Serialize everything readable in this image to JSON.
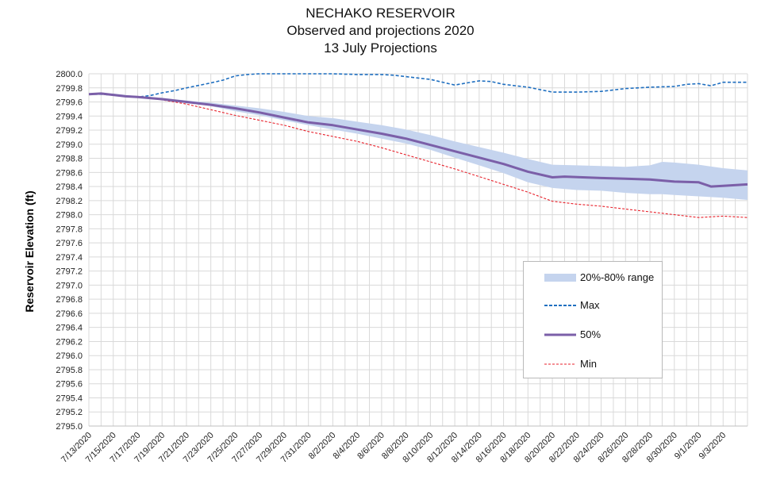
{
  "titles": {
    "line1": "NECHAKO RESERVOIR",
    "line2": "Observed and projections 2020",
    "line3": "13 July Projections"
  },
  "chart_data": {
    "type": "line",
    "ylabel": "Reservoir Elevation (ft)",
    "xlabel": "",
    "ylim": [
      2795.0,
      2800.0
    ],
    "y_tick_step": 0.2,
    "grid": true,
    "legend_position": "lower-right",
    "x_tick_labels": [
      "7/13/2020",
      "7/15/2020",
      "7/17/2020",
      "7/19/2020",
      "7/21/2020",
      "7/23/2020",
      "7/25/2020",
      "7/27/2020",
      "7/29/2020",
      "7/31/2020",
      "8/2/2020",
      "8/4/2020",
      "8/6/2020",
      "8/8/2020",
      "8/10/2020",
      "8/12/2020",
      "8/14/2020",
      "8/16/2020",
      "8/18/2020",
      "8/20/2020",
      "8/22/2020",
      "8/24/2020",
      "8/26/2020",
      "8/28/2020",
      "8/30/2020",
      "9/1/2020",
      "9/3/2020"
    ],
    "x_start": "7/13/2020",
    "x_end": "9/5/2020",
    "range_band": {
      "name": "20%-80% range",
      "color": "#c5d4ee",
      "points": [
        {
          "date": "7/13/2020",
          "low": 2799.71,
          "high": 2799.71
        },
        {
          "date": "7/15/2020",
          "low": 2799.71,
          "high": 2799.72
        },
        {
          "date": "7/17/2020",
          "low": 2799.66,
          "high": 2799.68
        },
        {
          "date": "7/19/2020",
          "low": 2799.64,
          "high": 2799.66
        },
        {
          "date": "7/21/2020",
          "low": 2799.59,
          "high": 2799.62
        },
        {
          "date": "7/23/2020",
          "low": 2799.54,
          "high": 2799.59
        },
        {
          "date": "7/25/2020",
          "low": 2799.47,
          "high": 2799.55
        },
        {
          "date": "7/27/2020",
          "low": 2799.41,
          "high": 2799.51
        },
        {
          "date": "7/29/2020",
          "low": 2799.34,
          "high": 2799.46
        },
        {
          "date": "7/31/2020",
          "low": 2799.27,
          "high": 2799.4
        },
        {
          "date": "8/2/2020",
          "low": 2799.21,
          "high": 2799.37
        },
        {
          "date": "8/4/2020",
          "low": 2799.15,
          "high": 2799.32
        },
        {
          "date": "8/6/2020",
          "low": 2799.08,
          "high": 2799.27
        },
        {
          "date": "8/8/2020",
          "low": 2799.01,
          "high": 2799.21
        },
        {
          "date": "8/10/2020",
          "low": 2798.92,
          "high": 2799.13
        },
        {
          "date": "8/12/2020",
          "low": 2798.81,
          "high": 2799.04
        },
        {
          "date": "8/14/2020",
          "low": 2798.7,
          "high": 2798.96
        },
        {
          "date": "8/16/2020",
          "low": 2798.59,
          "high": 2798.88
        },
        {
          "date": "8/18/2020",
          "low": 2798.46,
          "high": 2798.79
        },
        {
          "date": "8/20/2020",
          "low": 2798.38,
          "high": 2798.71
        },
        {
          "date": "8/22/2020",
          "low": 2798.35,
          "high": 2798.7
        },
        {
          "date": "8/24/2020",
          "low": 2798.34,
          "high": 2798.69
        },
        {
          "date": "8/26/2020",
          "low": 2798.31,
          "high": 2798.68
        },
        {
          "date": "8/28/2020",
          "low": 2798.29,
          "high": 2798.7
        },
        {
          "date": "8/29/2020",
          "low": 2798.29,
          "high": 2798.75
        },
        {
          "date": "8/30/2020",
          "low": 2798.28,
          "high": 2798.74
        },
        {
          "date": "9/1/2020",
          "low": 2798.26,
          "high": 2798.71
        },
        {
          "date": "9/3/2020",
          "low": 2798.24,
          "high": 2798.66
        },
        {
          "date": "9/5/2020",
          "low": 2798.21,
          "high": 2798.63
        }
      ]
    },
    "series": [
      {
        "name": "Max",
        "color": "#1f6fc0",
        "dash": "dashed",
        "points": [
          {
            "date": "7/13/2020",
            "value": 2799.71
          },
          {
            "date": "7/14/2020",
            "value": 2799.71
          },
          {
            "date": "7/17/2020",
            "value": 2799.67
          },
          {
            "date": "7/18/2020",
            "value": 2799.69
          },
          {
            "date": "7/19/2020",
            "value": 2799.73
          },
          {
            "date": "7/20/2020",
            "value": 2799.76
          },
          {
            "date": "7/21/2020",
            "value": 2799.8
          },
          {
            "date": "7/23/2020",
            "value": 2799.87
          },
          {
            "date": "7/24/2020",
            "value": 2799.91
          },
          {
            "date": "7/25/2020",
            "value": 2799.97
          },
          {
            "date": "7/26/2020",
            "value": 2799.99
          },
          {
            "date": "7/27/2020",
            "value": 2800.0
          },
          {
            "date": "7/31/2020",
            "value": 2800.0
          },
          {
            "date": "8/2/2020",
            "value": 2800.0
          },
          {
            "date": "8/4/2020",
            "value": 2799.99
          },
          {
            "date": "8/6/2020",
            "value": 2799.99
          },
          {
            "date": "8/7/2020",
            "value": 2799.98
          },
          {
            "date": "8/8/2020",
            "value": 2799.96
          },
          {
            "date": "8/10/2020",
            "value": 2799.92
          },
          {
            "date": "8/12/2020",
            "value": 2799.84
          },
          {
            "date": "8/13/2020",
            "value": 2799.87
          },
          {
            "date": "8/14/2020",
            "value": 2799.9
          },
          {
            "date": "8/15/2020",
            "value": 2799.89
          },
          {
            "date": "8/16/2020",
            "value": 2799.85
          },
          {
            "date": "8/18/2020",
            "value": 2799.81
          },
          {
            "date": "8/20/2020",
            "value": 2799.74
          },
          {
            "date": "8/22/2020",
            "value": 2799.74
          },
          {
            "date": "8/24/2020",
            "value": 2799.75
          },
          {
            "date": "8/26/2020",
            "value": 2799.79
          },
          {
            "date": "8/28/2020",
            "value": 2799.81
          },
          {
            "date": "8/30/2020",
            "value": 2799.82
          },
          {
            "date": "8/31/2020",
            "value": 2799.85
          },
          {
            "date": "9/1/2020",
            "value": 2799.86
          },
          {
            "date": "9/2/2020",
            "value": 2799.83
          },
          {
            "date": "9/3/2020",
            "value": 2799.88
          },
          {
            "date": "9/5/2020",
            "value": 2799.88
          }
        ]
      },
      {
        "name": "50%",
        "color": "#7b5fa8",
        "dash": "solid",
        "points": [
          {
            "date": "7/13/2020",
            "value": 2799.71
          },
          {
            "date": "7/14/2020",
            "value": 2799.72
          },
          {
            "date": "7/15/2020",
            "value": 2799.7
          },
          {
            "date": "7/16/2020",
            "value": 2799.68
          },
          {
            "date": "7/17/2020",
            "value": 2799.67
          },
          {
            "date": "7/19/2020",
            "value": 2799.64
          },
          {
            "date": "7/21/2020",
            "value": 2799.6
          },
          {
            "date": "7/23/2020",
            "value": 2799.56
          },
          {
            "date": "7/25/2020",
            "value": 2799.51
          },
          {
            "date": "7/27/2020",
            "value": 2799.45
          },
          {
            "date": "7/29/2020",
            "value": 2799.38
          },
          {
            "date": "7/31/2020",
            "value": 2799.31
          },
          {
            "date": "8/2/2020",
            "value": 2799.27
          },
          {
            "date": "8/4/2020",
            "value": 2799.21
          },
          {
            "date": "8/6/2020",
            "value": 2799.15
          },
          {
            "date": "8/8/2020",
            "value": 2799.08
          },
          {
            "date": "8/10/2020",
            "value": 2798.99
          },
          {
            "date": "8/12/2020",
            "value": 2798.9
          },
          {
            "date": "8/14/2020",
            "value": 2798.81
          },
          {
            "date": "8/16/2020",
            "value": 2798.72
          },
          {
            "date": "8/18/2020",
            "value": 2798.61
          },
          {
            "date": "8/20/2020",
            "value": 2798.53
          },
          {
            "date": "8/21/2020",
            "value": 2798.54
          },
          {
            "date": "8/24/2020",
            "value": 2798.52
          },
          {
            "date": "8/26/2020",
            "value": 2798.51
          },
          {
            "date": "8/28/2020",
            "value": 2798.5
          },
          {
            "date": "8/30/2020",
            "value": 2798.47
          },
          {
            "date": "9/1/2020",
            "value": 2798.46
          },
          {
            "date": "9/2/2020",
            "value": 2798.4
          },
          {
            "date": "9/3/2020",
            "value": 2798.41
          },
          {
            "date": "9/5/2020",
            "value": 2798.43
          }
        ]
      },
      {
        "name": "Min",
        "color": "#e8212b",
        "dash": "dashed",
        "points": [
          {
            "date": "7/13/2020",
            "value": 2799.71
          },
          {
            "date": "7/14/2020",
            "value": 2799.71
          },
          {
            "date": "7/16/2020",
            "value": 2799.68
          },
          {
            "date": "7/18/2020",
            "value": 2799.66
          },
          {
            "date": "7/19/2020",
            "value": 2799.63
          },
          {
            "date": "7/21/2020",
            "value": 2799.57
          },
          {
            "date": "7/23/2020",
            "value": 2799.49
          },
          {
            "date": "7/25/2020",
            "value": 2799.41
          },
          {
            "date": "7/27/2020",
            "value": 2799.34
          },
          {
            "date": "7/29/2020",
            "value": 2799.27
          },
          {
            "date": "7/31/2020",
            "value": 2799.18
          },
          {
            "date": "8/2/2020",
            "value": 2799.11
          },
          {
            "date": "8/4/2020",
            "value": 2799.04
          },
          {
            "date": "8/6/2020",
            "value": 2798.95
          },
          {
            "date": "8/8/2020",
            "value": 2798.85
          },
          {
            "date": "8/10/2020",
            "value": 2798.75
          },
          {
            "date": "8/12/2020",
            "value": 2798.65
          },
          {
            "date": "8/14/2020",
            "value": 2798.54
          },
          {
            "date": "8/16/2020",
            "value": 2798.43
          },
          {
            "date": "8/18/2020",
            "value": 2798.32
          },
          {
            "date": "8/20/2020",
            "value": 2798.19
          },
          {
            "date": "8/22/2020",
            "value": 2798.15
          },
          {
            "date": "8/24/2020",
            "value": 2798.12
          },
          {
            "date": "8/26/2020",
            "value": 2798.08
          },
          {
            "date": "8/28/2020",
            "value": 2798.04
          },
          {
            "date": "8/30/2020",
            "value": 2798.0
          },
          {
            "date": "9/1/2020",
            "value": 2797.96
          },
          {
            "date": "9/3/2020",
            "value": 2797.98
          },
          {
            "date": "9/5/2020",
            "value": 2797.96
          }
        ]
      }
    ]
  }
}
